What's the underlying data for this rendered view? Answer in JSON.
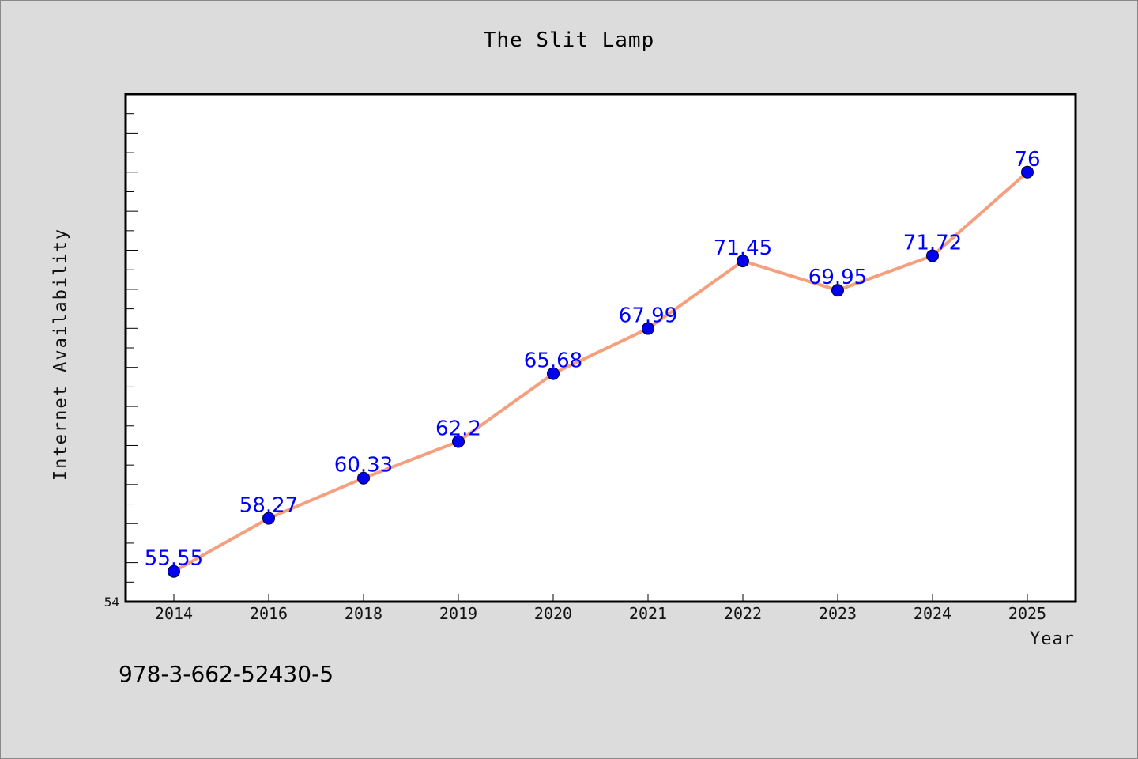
{
  "chart_data": {
    "type": "line",
    "title": "The Slit Lamp",
    "xlabel": "Year",
    "ylabel": "Internet Availability",
    "categories": [
      "2014",
      "2016",
      "2018",
      "2019",
      "2020",
      "2021",
      "2022",
      "2023",
      "2024",
      "2025"
    ],
    "series": [
      {
        "values": [
          55.55,
          58.27,
          60.33,
          62.2,
          65.68,
          67.99,
          71.45,
          69.95,
          71.72,
          76
        ],
        "data_labels": [
          "55.55",
          "58.27",
          "60.33",
          "62.2",
          "65.68",
          "67.99",
          "71.45",
          "69.95",
          "71.72",
          "76"
        ]
      }
    ],
    "ylim": [
      54,
      80
    ],
    "y_tick_labels": [
      "54"
    ],
    "grid": false,
    "colors": {
      "line": "#f4a07f",
      "marker": "#0000ee",
      "data_label": "#0000ff",
      "plot_background": "#ffffff",
      "figure_background": "#dcdcdc"
    }
  },
  "footer": {
    "text": "978-3-662-52430-5"
  }
}
